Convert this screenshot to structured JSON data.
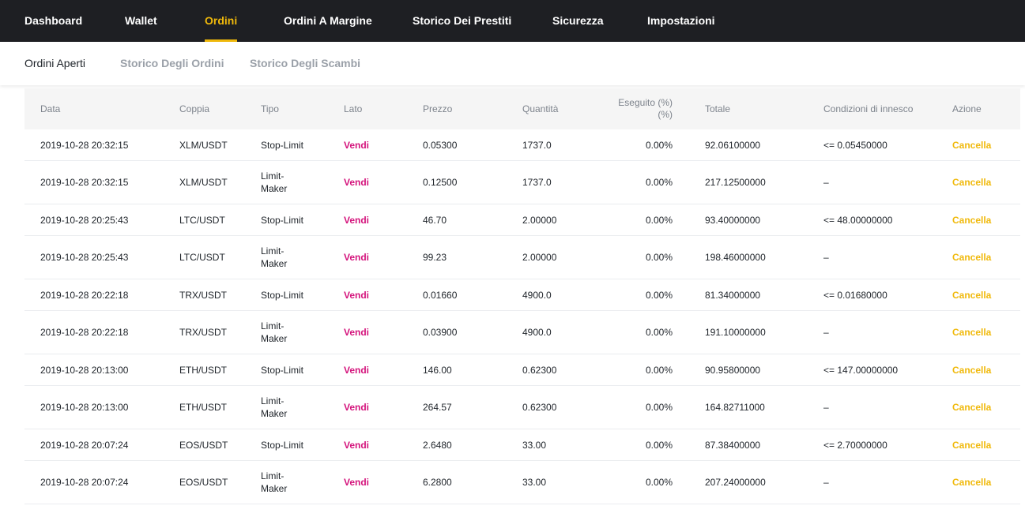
{
  "topnav": {
    "items": [
      {
        "label": "Dashboard"
      },
      {
        "label": "Wallet"
      },
      {
        "label": "Ordini"
      },
      {
        "label": "Ordini A Margine"
      },
      {
        "label": "Storico Dei Prestiti"
      },
      {
        "label": "Sicurezza"
      },
      {
        "label": "Impostazioni"
      }
    ],
    "active": "Ordini"
  },
  "subnav": {
    "items": [
      {
        "label": "Ordini Aperti"
      },
      {
        "label": "Storico Degli Ordini"
      },
      {
        "label": "Storico Degli Scambi"
      }
    ],
    "active": "Ordini Aperti"
  },
  "table": {
    "headers": {
      "data": "Data",
      "coppia": "Coppia",
      "tipo": "Tipo",
      "lato": "Lato",
      "prezzo": "Prezzo",
      "quantita": "Quantità",
      "eseguito_line1": "Eseguito (%)",
      "eseguito_line2": "(%)",
      "totale": "Totale",
      "condizioni": "Condizioni di innesco",
      "azione": "Azione"
    },
    "rows": [
      {
        "data": "2019-10-28 20:32:15",
        "coppia": "XLM/USDT",
        "tipo": "Stop-Limit",
        "lato": "Vendi",
        "prezzo": "0.05300",
        "quantita": "1737.0",
        "eseguito": "0.00%",
        "totale": "92.06100000",
        "condizioni": "<= 0.05450000",
        "azione": "Cancella"
      },
      {
        "data": "2019-10-28 20:32:15",
        "coppia": "XLM/USDT",
        "tipo": "Limit-\nMaker",
        "lato": "Vendi",
        "prezzo": "0.12500",
        "quantita": "1737.0",
        "eseguito": "0.00%",
        "totale": "217.12500000",
        "condizioni": "–",
        "azione": "Cancella"
      },
      {
        "data": "2019-10-28 20:25:43",
        "coppia": "LTC/USDT",
        "tipo": "Stop-Limit",
        "lato": "Vendi",
        "prezzo": "46.70",
        "quantita": "2.00000",
        "eseguito": "0.00%",
        "totale": "93.40000000",
        "condizioni": "<= 48.00000000",
        "azione": "Cancella"
      },
      {
        "data": "2019-10-28 20:25:43",
        "coppia": "LTC/USDT",
        "tipo": "Limit-\nMaker",
        "lato": "Vendi",
        "prezzo": "99.23",
        "quantita": "2.00000",
        "eseguito": "0.00%",
        "totale": "198.46000000",
        "condizioni": "–",
        "azione": "Cancella"
      },
      {
        "data": "2019-10-28 20:22:18",
        "coppia": "TRX/USDT",
        "tipo": "Stop-Limit",
        "lato": "Vendi",
        "prezzo": "0.01660",
        "quantita": "4900.0",
        "eseguito": "0.00%",
        "totale": "81.34000000",
        "condizioni": "<= 0.01680000",
        "azione": "Cancella"
      },
      {
        "data": "2019-10-28 20:22:18",
        "coppia": "TRX/USDT",
        "tipo": "Limit-\nMaker",
        "lato": "Vendi",
        "prezzo": "0.03900",
        "quantita": "4900.0",
        "eseguito": "0.00%",
        "totale": "191.10000000",
        "condizioni": "–",
        "azione": "Cancella"
      },
      {
        "data": "2019-10-28 20:13:00",
        "coppia": "ETH/USDT",
        "tipo": "Stop-Limit",
        "lato": "Vendi",
        "prezzo": "146.00",
        "quantita": "0.62300",
        "eseguito": "0.00%",
        "totale": "90.95800000",
        "condizioni": "<= 147.00000000",
        "azione": "Cancella"
      },
      {
        "data": "2019-10-28 20:13:00",
        "coppia": "ETH/USDT",
        "tipo": "Limit-\nMaker",
        "lato": "Vendi",
        "prezzo": "264.57",
        "quantita": "0.62300",
        "eseguito": "0.00%",
        "totale": "164.82711000",
        "condizioni": "–",
        "azione": "Cancella"
      },
      {
        "data": "2019-10-28 20:07:24",
        "coppia": "EOS/USDT",
        "tipo": "Stop-Limit",
        "lato": "Vendi",
        "prezzo": "2.6480",
        "quantita": "33.00",
        "eseguito": "0.00%",
        "totale": "87.38400000",
        "condizioni": "<= 2.70000000",
        "azione": "Cancella"
      },
      {
        "data": "2019-10-28 20:07:24",
        "coppia": "EOS/USDT",
        "tipo": "Limit-\nMaker",
        "lato": "Vendi",
        "prezzo": "6.2800",
        "quantita": "33.00",
        "eseguito": "0.00%",
        "totale": "207.24000000",
        "condizioni": "–",
        "azione": "Cancella"
      }
    ]
  },
  "colors": {
    "nav_bg": "#1e1f23",
    "accent": "#f0b90b",
    "sell": "#d4147c"
  }
}
